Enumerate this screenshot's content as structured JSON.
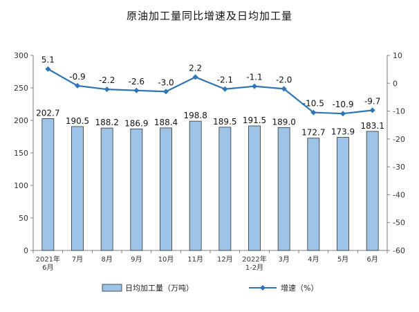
{
  "chart_data": {
    "type": "bar+line",
    "title": "原油加工量同比增速及日均加工量",
    "categories": [
      [
        "2021年",
        "6月"
      ],
      [
        "7月"
      ],
      [
        "8月"
      ],
      [
        "9月"
      ],
      [
        "10月"
      ],
      [
        "11月"
      ],
      [
        "12月"
      ],
      [
        "2022年",
        "1-2月"
      ],
      [
        "3月"
      ],
      [
        "4月"
      ],
      [
        "5月"
      ],
      [
        "6月"
      ]
    ],
    "series": [
      {
        "name": "日均加工量（万吨）",
        "type": "bar",
        "axis": "left",
        "values": [
          202.7,
          190.5,
          188.2,
          186.9,
          188.4,
          198.8,
          189.5,
          191.5,
          189.0,
          172.7,
          173.9,
          183.1
        ],
        "labels": [
          "202.7",
          "190.5",
          "188.2",
          "186.9",
          "188.4",
          "198.8",
          "189.5",
          "191.5",
          "189.0",
          "172.7",
          "173.9",
          "183.1"
        ],
        "color": "#9dc3e6",
        "border": "#2f2f2f"
      },
      {
        "name": "增速（%）",
        "type": "line",
        "axis": "right",
        "values": [
          5.1,
          -0.9,
          -2.2,
          -2.6,
          -3.0,
          2.2,
          -2.1,
          -1.1,
          -2.0,
          -10.5,
          -10.9,
          -9.7
        ],
        "labels": [
          "5.1",
          "-0.9",
          "-2.2",
          "-2.6",
          "-3.0",
          "2.2",
          "-2.1",
          "-1.1",
          "-2.0",
          "-10.5",
          "-10.9",
          "-9.7"
        ],
        "color": "#2e75b6"
      }
    ],
    "y_left": {
      "min": 0,
      "max": 300,
      "ticks": [
        "0",
        "50",
        "100",
        "150",
        "200",
        "250",
        "300"
      ]
    },
    "y_right": {
      "min": -60,
      "max": 10,
      "ticks": [
        "10",
        "0",
        "-10",
        "-20",
        "-30",
        "-40",
        "-50",
        "-60"
      ]
    },
    "grid": false,
    "legend_position": "bottom"
  }
}
